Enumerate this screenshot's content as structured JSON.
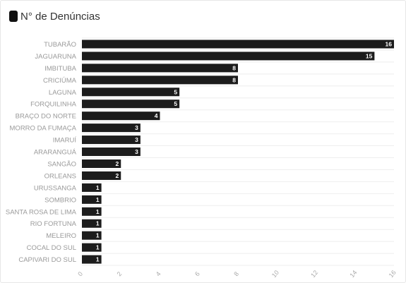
{
  "header": {
    "title": "N° de Denúncias"
  },
  "colors": {
    "bar": "#1c1c1c",
    "grid": "#eeeeee",
    "swatch": "#111111"
  },
  "chart_data": {
    "type": "bar",
    "orientation": "horizontal",
    "categories": [
      "TUBARÃO",
      "JAGUARUNA",
      "IMBITUBA",
      "CRICIÚMA",
      "LAGUNA",
      "FORQUILINHA",
      "BRAÇO DO NORTE",
      "MORRO DA FUMAÇA",
      "IMARUÍ",
      "ARARANGUÁ",
      "SANGÃO",
      "ORLEANS",
      "URUSSANGA",
      "SOMBRIO",
      "SANTA ROSA DE LIMA",
      "RIO FORTUNA",
      "MELEIRO",
      "COCAL DO SUL",
      "CAPIVARI DO SUL"
    ],
    "values": [
      16,
      15,
      8,
      8,
      5,
      5,
      4,
      3,
      3,
      3,
      2,
      2,
      1,
      1,
      1,
      1,
      1,
      1,
      1
    ],
    "xlim": [
      0,
      16
    ],
    "xticks": [
      0,
      2,
      4,
      6,
      8,
      10,
      12,
      14,
      16
    ],
    "data_labels": true,
    "grid": true,
    "legend": "top-left"
  }
}
